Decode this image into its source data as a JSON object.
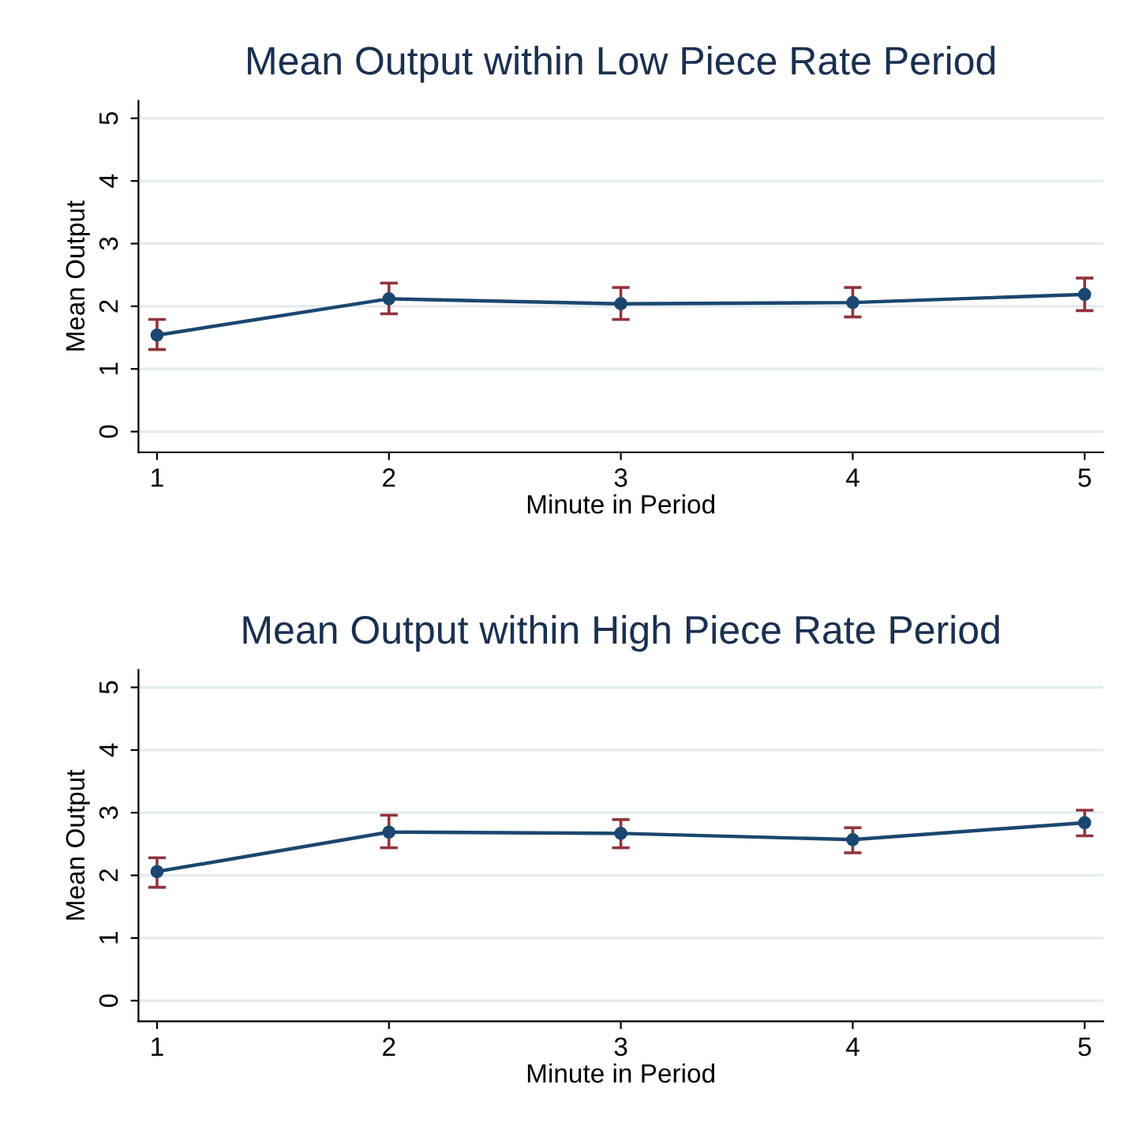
{
  "chart_data": [
    {
      "type": "line",
      "title": "Mean Output within Low Piece Rate Period",
      "xlabel": "Minute in Period",
      "ylabel": "Mean Output",
      "x": [
        1,
        2,
        3,
        4,
        5
      ],
      "series": [
        {
          "color": "#1a476f",
          "values": [
            1.54,
            2.12,
            2.04,
            2.06,
            2.19
          ],
          "errors": [
            [
              1.31,
              1.79
            ],
            [
              1.88,
              2.37
            ],
            [
              1.79,
              2.3
            ],
            [
              1.83,
              2.3
            ],
            [
              1.93,
              2.45
            ]
          ]
        }
      ],
      "xlim": [
        0.92,
        5.08
      ],
      "ylim": [
        -0.33,
        5.28
      ],
      "xticks": [
        1,
        2,
        3,
        4,
        5
      ],
      "yticks": [
        0,
        1,
        2,
        3,
        4,
        5
      ],
      "grid": "y",
      "marker": "circle",
      "line_style": "solid"
    },
    {
      "type": "line",
      "title": "Mean Output within High Piece Rate Period",
      "xlabel": "Minute in Period",
      "ylabel": "Mean Output",
      "x": [
        1,
        2,
        3,
        4,
        5
      ],
      "series": [
        {
          "color": "#1a476f",
          "values": [
            2.06,
            2.69,
            2.67,
            2.57,
            2.84
          ],
          "errors": [
            [
              1.81,
              2.28
            ],
            [
              2.44,
              2.96
            ],
            [
              2.44,
              2.89
            ],
            [
              2.36,
              2.76
            ],
            [
              2.63,
              3.04
            ]
          ]
        }
      ],
      "xlim": [
        0.92,
        5.08
      ],
      "ylim": [
        -0.33,
        5.28
      ],
      "xticks": [
        1,
        2,
        3,
        4,
        5
      ],
      "yticks": [
        0,
        1,
        2,
        3,
        4,
        5
      ],
      "grid": "y",
      "marker": "circle",
      "line_style": "solid"
    }
  ]
}
